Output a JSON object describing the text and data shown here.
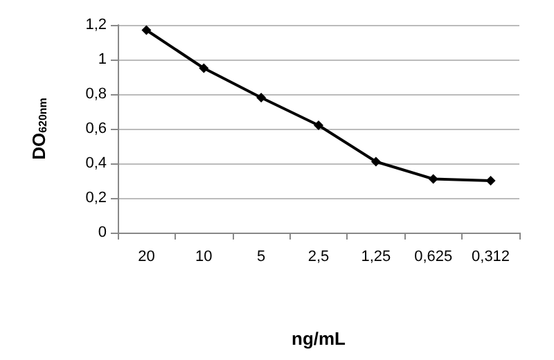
{
  "chart_data": {
    "type": "line",
    "xlabel": "ng/mL",
    "ylabel": "DO$_{620nm}$",
    "categories": [
      "20",
      "10",
      "5",
      "2,5",
      "1,25",
      "0,625",
      "0,312"
    ],
    "series": [
      {
        "color": "#000000",
        "values": [
          1.17,
          0.95,
          0.78,
          0.62,
          0.41,
          0.31,
          0.3
        ]
      }
    ],
    "ylim": [
      0,
      1.2
    ],
    "yticks": [
      {
        "value": 0,
        "label": "0"
      },
      {
        "value": 0.2,
        "label": "0,2"
      },
      {
        "value": 0.4,
        "label": "0,4"
      },
      {
        "value": 0.6,
        "label": "0,6"
      },
      {
        "value": 0.8,
        "label": "0,8"
      },
      {
        "value": 1,
        "label": "1"
      },
      {
        "value": 1.2,
        "label": "1,2"
      }
    ],
    "grid": "y",
    "marker": "diamond",
    "line_style": "solid"
  }
}
